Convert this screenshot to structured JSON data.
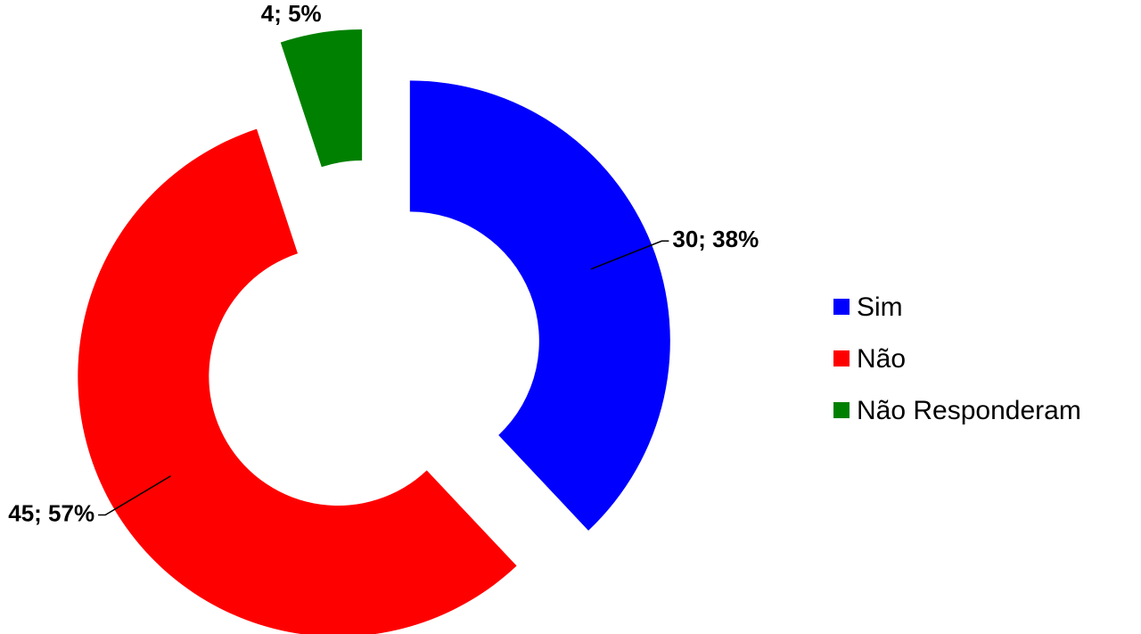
{
  "chart_data": {
    "type": "donut",
    "categories": [
      "Sim",
      "Não",
      "Não Responderam"
    ],
    "values": [
      30,
      45,
      4
    ],
    "value_labels": [
      "30; 38%",
      "45; 57%",
      "4; 5%"
    ],
    "colors": [
      "#0000ff",
      "#ff0000",
      "#008000"
    ],
    "legend": "right"
  }
}
